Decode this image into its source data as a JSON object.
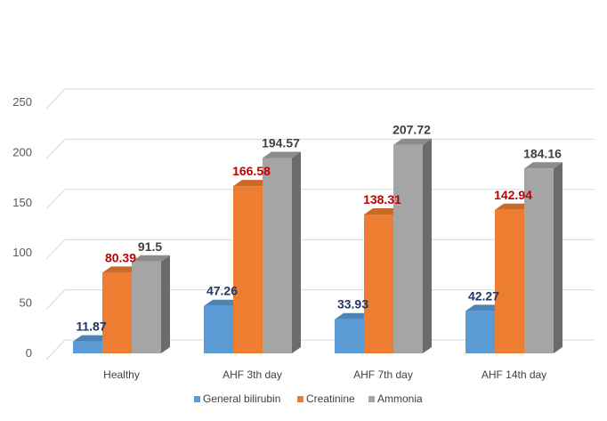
{
  "chart_data": {
    "type": "bar",
    "title": "",
    "xlabel": "",
    "ylabel": "",
    "ylim": [
      0,
      250
    ],
    "yticks": [
      0,
      50,
      100,
      150,
      200,
      250
    ],
    "grid": true,
    "legend_position": "bottom",
    "categories": [
      "Healthy",
      "AHF 3th day",
      "AHF 7th day",
      "AHF 14th day"
    ],
    "series": [
      {
        "name": "General bilirubin",
        "values": [
          11.87,
          47.26,
          33.93,
          42.27
        ],
        "labels": [
          "11.87",
          "47.26",
          "33.93",
          "42.27"
        ],
        "color": "#5b9bd5",
        "label_color": "#1f3864"
      },
      {
        "name": "Creatinine",
        "values": [
          80.39,
          166.58,
          138.31,
          142.94
        ],
        "labels": [
          "80.39",
          "166.58",
          "138.31",
          "142.94"
        ],
        "color": "#ed7d31",
        "label_color": "#c00000"
      },
      {
        "name": "Ammonia",
        "values": [
          91.5,
          194.57,
          207.72,
          184.16
        ],
        "labels": [
          "91.5",
          "194.57",
          "207.72",
          "184.16"
        ],
        "color": "#a5a5a5",
        "label_color": "#404040"
      }
    ]
  }
}
